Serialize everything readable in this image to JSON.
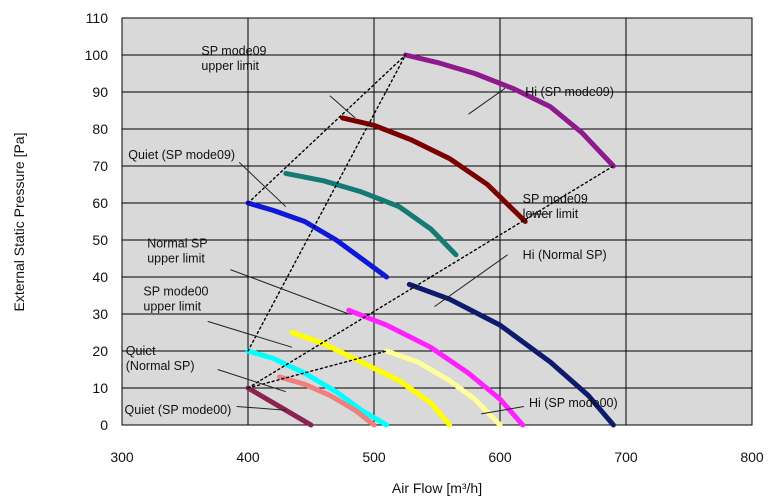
{
  "chart_data": {
    "type": "line",
    "xlabel": "Air Flow [m³/h]",
    "ylabel": "External Static Pressure [Pa]",
    "xlim": [
      300,
      800
    ],
    "ylim": [
      0,
      110
    ],
    "xticks": [
      300,
      400,
      500,
      600,
      700,
      800
    ],
    "yticks": [
      0,
      10,
      20,
      30,
      40,
      50,
      60,
      70,
      80,
      90,
      100,
      110
    ],
    "grid": true,
    "plot_background": "#d9d9d9",
    "series": [
      {
        "color": "#8e1a8e",
        "style": "solid",
        "points": [
          [
            525,
            100
          ],
          [
            550,
            98
          ],
          [
            580,
            95
          ],
          [
            610,
            91
          ],
          [
            640,
            86
          ],
          [
            665,
            79
          ],
          [
            690,
            70
          ]
        ]
      },
      {
        "color": "#7a0000",
        "style": "solid",
        "points": [
          [
            475,
            83
          ],
          [
            500,
            81
          ],
          [
            530,
            77
          ],
          [
            560,
            72
          ],
          [
            590,
            65
          ],
          [
            620,
            55
          ]
        ]
      },
      {
        "color": "#147a73",
        "style": "solid",
        "points": [
          [
            430,
            68
          ],
          [
            460,
            66
          ],
          [
            490,
            63
          ],
          [
            520,
            59
          ],
          [
            545,
            53
          ],
          [
            565,
            46
          ]
        ]
      },
      {
        "color": "#0d18d8",
        "style": "solid",
        "points": [
          [
            400,
            60
          ],
          [
            420,
            58
          ],
          [
            445,
            55
          ],
          [
            470,
            50
          ],
          [
            490,
            45
          ],
          [
            510,
            40
          ]
        ]
      },
      {
        "color": "#0e1a6e",
        "style": "solid",
        "points": [
          [
            528,
            38
          ],
          [
            560,
            34
          ],
          [
            600,
            27
          ],
          [
            640,
            17
          ],
          [
            670,
            8
          ],
          [
            690,
            0
          ]
        ]
      },
      {
        "color": "#ff22ff",
        "style": "solid",
        "points": [
          [
            480,
            31
          ],
          [
            510,
            27
          ],
          [
            545,
            21
          ],
          [
            575,
            14
          ],
          [
            600,
            7
          ],
          [
            618,
            0
          ]
        ]
      },
      {
        "color": "#ffff00",
        "style": "solid",
        "points": [
          [
            435,
            25
          ],
          [
            460,
            22
          ],
          [
            490,
            17
          ],
          [
            520,
            12
          ],
          [
            545,
            6
          ],
          [
            560,
            0
          ]
        ]
      },
      {
        "color": "#ffff99",
        "style": "solid",
        "points": [
          [
            510,
            20
          ],
          [
            535,
            17
          ],
          [
            560,
            12
          ],
          [
            580,
            7
          ],
          [
            600,
            0
          ]
        ]
      },
      {
        "color": "#00ffff",
        "style": "solid",
        "points": [
          [
            400,
            20
          ],
          [
            420,
            18
          ],
          [
            445,
            14
          ],
          [
            470,
            9
          ],
          [
            490,
            4
          ],
          [
            510,
            0
          ]
        ]
      },
      {
        "color": "#f08080",
        "style": "solid",
        "points": [
          [
            425,
            13
          ],
          [
            445,
            11
          ],
          [
            465,
            8
          ],
          [
            485,
            4
          ],
          [
            500,
            0
          ]
        ]
      },
      {
        "color": "#8b2252",
        "style": "solid",
        "points": [
          [
            400,
            10
          ],
          [
            415,
            7
          ],
          [
            430,
            4
          ],
          [
            450,
            0
          ]
        ]
      },
      {
        "color": "#000000",
        "style": "dotted",
        "points": [
          [
            400,
            60
          ],
          [
            525,
            100
          ]
        ]
      },
      {
        "color": "#000000",
        "style": "dotted",
        "points": [
          [
            400,
            20
          ],
          [
            525,
            100
          ]
        ]
      },
      {
        "color": "#000000",
        "style": "dotted",
        "points": [
          [
            400,
            10
          ],
          [
            690,
            70
          ]
        ]
      },
      {
        "color": "#000000",
        "style": "dotted",
        "points": [
          [
            400,
            10
          ],
          [
            510,
            20
          ]
        ]
      }
    ],
    "annotations": [
      {
        "lines": [
          "SP mode09",
          "upper limit"
        ],
        "anchor": "left",
        "text_at": [
          363,
          99
        ],
        "leader": [
          [
            465,
            89
          ],
          [
            485,
            83
          ]
        ]
      },
      {
        "lines": [
          "Hi (SP mode09)"
        ],
        "anchor": "left",
        "text_at": [
          620,
          90
        ],
        "leader": [
          [
            604,
            91
          ],
          [
            575,
            84
          ]
        ]
      },
      {
        "lines": [
          "Quiet (SP mode09)"
        ],
        "anchor": "start",
        "text_at": [
          305,
          73
        ],
        "leader": [
          [
            393,
            71
          ],
          [
            430,
            59
          ]
        ]
      },
      {
        "lines": [
          "SP mode09",
          "lower limit"
        ],
        "anchor": "left",
        "text_at": [
          618,
          59
        ],
        "leader": [
          [
            622,
            57
          ],
          [
            640,
            57
          ]
        ]
      },
      {
        "lines": [
          "Normal SP",
          "upper limit"
        ],
        "anchor": "start",
        "text_at": [
          320,
          47
        ],
        "leader": [
          [
            386,
            42
          ],
          [
            480,
            30
          ]
        ]
      },
      {
        "lines": [
          "Hi (Normal SP)"
        ],
        "anchor": "left",
        "text_at": [
          618,
          46
        ],
        "leader": [
          [
            606,
            46
          ],
          [
            548,
            32
          ]
        ]
      },
      {
        "lines": [
          "SP mode00",
          "upper limit"
        ],
        "anchor": "start",
        "text_at": [
          317,
          34
        ],
        "leader": [
          [
            368,
            28
          ],
          [
            435,
            21
          ]
        ]
      },
      {
        "lines": [
          "Quiet",
          "(Normal SP)"
        ],
        "anchor": "start",
        "text_at": [
          303,
          18
        ],
        "leader": [
          [
            376,
            15
          ],
          [
            430,
            9
          ]
        ]
      },
      {
        "lines": [
          "Quiet (SP mode00)"
        ],
        "anchor": "start",
        "text_at": [
          302,
          4
        ],
        "leader": [
          [
            391,
            5
          ],
          [
            430,
            4
          ]
        ]
      },
      {
        "lines": [
          "Hi (SP mode00)"
        ],
        "anchor": "left",
        "text_at": [
          623,
          6
        ],
        "leader": [
          [
            619,
            5
          ],
          [
            585,
            3
          ]
        ]
      }
    ]
  }
}
